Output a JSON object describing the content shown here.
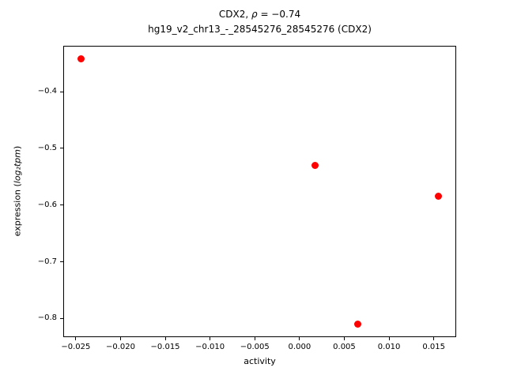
{
  "title": {
    "part1": "CDX2, ",
    "rho": "ρ",
    "part2": " = −0.74",
    "line2": "hg19_v2_chr13_-_28545276_28545276 (CDX2)"
  },
  "ylabel": {
    "prefix": "expression (",
    "math": "log₂tpm",
    "suffix": ")"
  },
  "chart_data": {
    "type": "scatter",
    "title": "CDX2, ρ = −0.74\nhg19_v2_chr13_-_28545276_28545276 (CDX2)",
    "xlabel": "activity",
    "ylabel": "expression (log₂tpm)",
    "marker_color": "#ff0000",
    "grid": false,
    "legend": null,
    "xlim": [
      -0.0264,
      0.0175
    ],
    "ylim": [
      -0.833,
      -0.319
    ],
    "xticks": [
      -0.025,
      -0.02,
      -0.015,
      -0.01,
      -0.005,
      0.0,
      0.005,
      0.01,
      0.015
    ],
    "xtick_labels": [
      "−0.025",
      "−0.020",
      "−0.015",
      "−0.010",
      "−0.005",
      "0.000",
      "0.005",
      "0.010",
      "0.015"
    ],
    "yticks": [
      -0.4,
      -0.5,
      -0.6,
      -0.7,
      -0.8
    ],
    "ytick_labels": [
      "−0.4",
      "−0.5",
      "−0.6",
      "−0.7",
      "−0.8"
    ],
    "points": [
      [
        -0.0244,
        -0.342
      ],
      [
        0.0017,
        -0.53
      ],
      [
        0.0155,
        -0.585
      ],
      [
        0.0065,
        -0.81
      ]
    ]
  }
}
